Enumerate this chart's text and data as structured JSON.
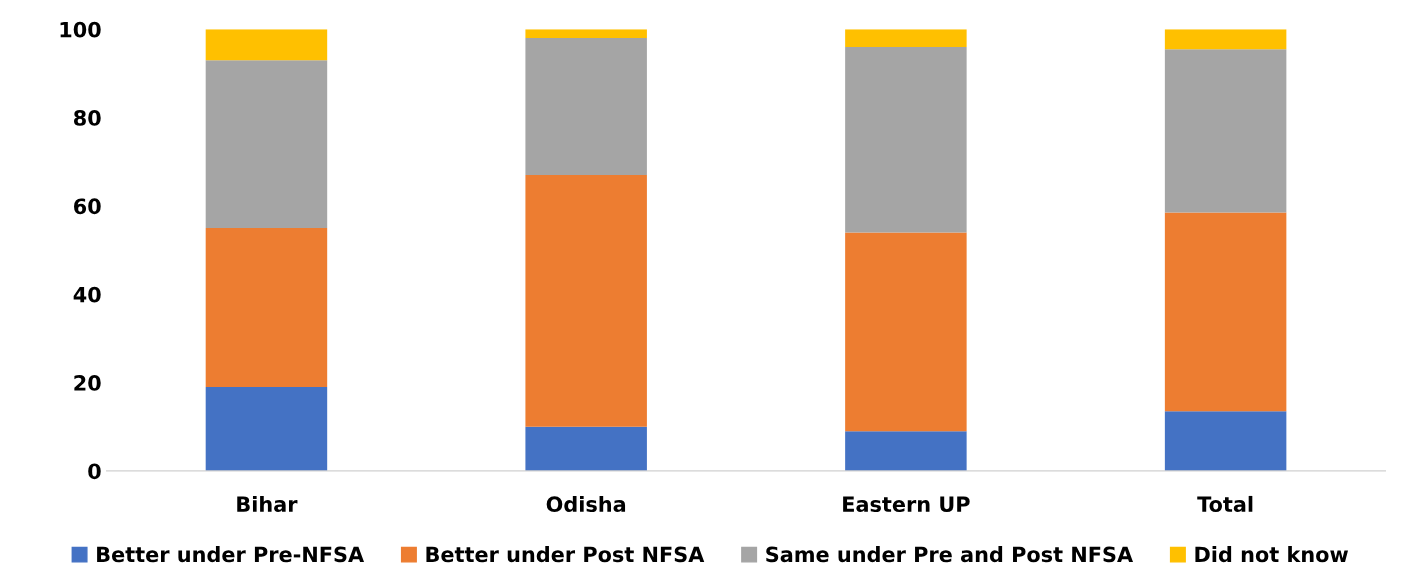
{
  "chart_data": {
    "type": "bar",
    "stacked": true,
    "categories": [
      "Bihar",
      "Odisha",
      "Eastern UP",
      "Total"
    ],
    "series": [
      {
        "name": "Better under Pre-NFSA",
        "color": "#4472c4",
        "values": [
          19,
          10,
          9,
          13.5
        ]
      },
      {
        "name": "Better under Post NFSA",
        "color": "#ed7d31",
        "values": [
          36,
          57,
          45,
          45
        ]
      },
      {
        "name": "Same under Pre and Post NFSA",
        "color": "#a5a5a5",
        "values": [
          38,
          31,
          42,
          37
        ]
      },
      {
        "name": "Did not know",
        "color": "#ffc000",
        "values": [
          7,
          2,
          4,
          4.5
        ]
      }
    ],
    "ylim": [
      0,
      100
    ],
    "yticks": [
      0,
      20,
      40,
      60,
      80,
      100
    ],
    "grid": false,
    "legend": "bottom"
  }
}
